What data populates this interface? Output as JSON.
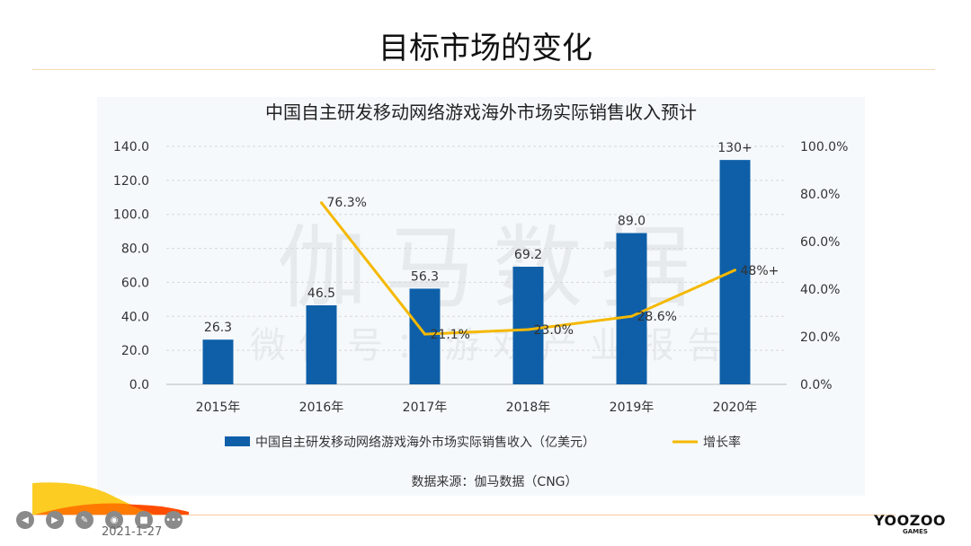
{
  "slide": {
    "title": "目标市场的变化",
    "date": "2021-1-27",
    "logo": "YOOZOO",
    "logo_sub": "GAMES"
  },
  "toolbar": [
    {
      "icon": "prev-icon",
      "glyph": "◀"
    },
    {
      "icon": "play-icon",
      "glyph": "▶"
    },
    {
      "icon": "pen-icon",
      "glyph": "✎"
    },
    {
      "icon": "screenshot-icon",
      "glyph": "◉"
    },
    {
      "icon": "camera-icon",
      "glyph": "■"
    },
    {
      "icon": "more-icon",
      "glyph": "•••"
    }
  ],
  "chart_data": {
    "type": "bar+line",
    "title": "中国自主研发移动网络游戏海外市场实际销售收入预计",
    "categories": [
      "2015年",
      "2016年",
      "2017年",
      "2018年",
      "2019年",
      "2020年"
    ],
    "series": [
      {
        "name": "中国自主研发移动网络游戏海外市场实际销售收入（亿美元）",
        "type": "bar",
        "color": "#0e5fa8",
        "values": [
          26.3,
          46.5,
          56.3,
          69.2,
          89.0,
          132
        ],
        "labels": [
          "26.3",
          "46.5",
          "56.3",
          "69.2",
          "89.0",
          "130+"
        ]
      },
      {
        "name": "增长率",
        "type": "line",
        "axis": "right",
        "color": "#f5b800",
        "values": [
          null,
          76.3,
          21.1,
          23.0,
          28.6,
          48
        ],
        "labels": [
          "",
          "76.3%",
          "21.1%",
          "23.0%",
          "28.6%",
          "48%+"
        ]
      }
    ],
    "y_left": {
      "range": [
        0,
        140
      ],
      "ticks": [
        "0.0",
        "20.0",
        "40.0",
        "60.0",
        "80.0",
        "100.0",
        "120.0",
        "140.0"
      ]
    },
    "y_right": {
      "range": [
        0,
        100
      ],
      "ticks": [
        "0.0%",
        "20.0%",
        "40.0%",
        "60.0%",
        "80.0%",
        "100.0%"
      ]
    },
    "grid": true,
    "legend": "bottom",
    "source": "数据来源：伽马数据（CNG）",
    "watermark": "伽马数据",
    "watermark_sub": "微信号：游戏产业报告"
  }
}
